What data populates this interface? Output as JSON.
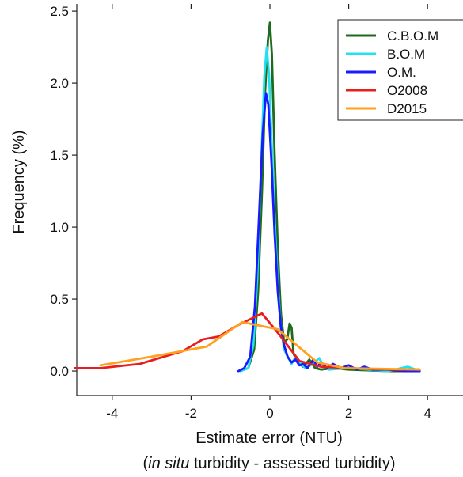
{
  "chart_data": {
    "type": "line",
    "title": "",
    "xlabel": "Estimate error (NTU)",
    "xlabel_note": {
      "open": "(",
      "italic": "in situ",
      "rest": " turbidity - assessed turbidity)"
    },
    "ylabel": "Frequency (%)",
    "xlim": [
      -4.9,
      4.9
    ],
    "ylim": [
      -0.17,
      2.55
    ],
    "xticks": [
      -4,
      -2,
      0,
      2,
      4
    ],
    "xtick_labels": [
      "-4",
      "-2",
      "0",
      "2",
      "4"
    ],
    "yticks": [
      0.0,
      0.5,
      1.0,
      1.5,
      2.0,
      2.5
    ],
    "ytick_labels": [
      "0.0",
      "0.5",
      "1.0",
      "1.5",
      "2.0",
      "2.5"
    ],
    "grid": false,
    "legend_position": "top-right",
    "series": [
      {
        "name": "C.B.O.M",
        "color": "#1e6b1e",
        "points": [
          [
            -0.75,
            0.0
          ],
          [
            -0.55,
            0.02
          ],
          [
            -0.4,
            0.15
          ],
          [
            -0.3,
            0.55
          ],
          [
            -0.2,
            1.25
          ],
          [
            -0.12,
            1.95
          ],
          [
            -0.05,
            2.3
          ],
          [
            0.0,
            2.42
          ],
          [
            0.05,
            2.2
          ],
          [
            0.12,
            1.5
          ],
          [
            0.2,
            0.85
          ],
          [
            0.28,
            0.4
          ],
          [
            0.36,
            0.2
          ],
          [
            0.44,
            0.22
          ],
          [
            0.5,
            0.33
          ],
          [
            0.55,
            0.3
          ],
          [
            0.6,
            0.12
          ],
          [
            0.7,
            0.06
          ],
          [
            0.85,
            0.03
          ],
          [
            1.0,
            0.08
          ],
          [
            1.15,
            0.02
          ],
          [
            1.3,
            0.01
          ],
          [
            1.6,
            0.02
          ],
          [
            2.0,
            0.01
          ],
          [
            3.0,
            0.0
          ],
          [
            3.8,
            0.0
          ]
        ]
      },
      {
        "name": "B.O.M",
        "color": "#22e0f0",
        "points": [
          [
            -0.75,
            0.0
          ],
          [
            -0.55,
            0.02
          ],
          [
            -0.42,
            0.18
          ],
          [
            -0.32,
            0.65
          ],
          [
            -0.22,
            1.45
          ],
          [
            -0.14,
            2.05
          ],
          [
            -0.08,
            2.25
          ],
          [
            -0.02,
            2.05
          ],
          [
            0.05,
            1.55
          ],
          [
            0.12,
            1.05
          ],
          [
            0.2,
            0.6
          ],
          [
            0.28,
            0.3
          ],
          [
            0.36,
            0.15
          ],
          [
            0.45,
            0.1
          ],
          [
            0.55,
            0.05
          ],
          [
            0.65,
            0.1
          ],
          [
            0.75,
            0.06
          ],
          [
            0.9,
            0.02
          ],
          [
            1.1,
            0.05
          ],
          [
            1.25,
            0.09
          ],
          [
            1.35,
            0.04
          ],
          [
            1.5,
            0.01
          ],
          [
            2.0,
            0.02
          ],
          [
            3.0,
            0.0
          ],
          [
            3.5,
            0.03
          ],
          [
            3.8,
            0.0
          ]
        ]
      },
      {
        "name": "O.M.",
        "color": "#1a1aff",
        "points": [
          [
            -0.8,
            0.0
          ],
          [
            -0.65,
            0.02
          ],
          [
            -0.5,
            0.1
          ],
          [
            -0.38,
            0.45
          ],
          [
            -0.28,
            1.05
          ],
          [
            -0.18,
            1.65
          ],
          [
            -0.1,
            1.93
          ],
          [
            -0.04,
            1.85
          ],
          [
            0.04,
            1.45
          ],
          [
            0.12,
            0.95
          ],
          [
            0.2,
            0.55
          ],
          [
            0.28,
            0.3
          ],
          [
            0.36,
            0.18
          ],
          [
            0.45,
            0.1
          ],
          [
            0.55,
            0.06
          ],
          [
            0.65,
            0.08
          ],
          [
            0.75,
            0.04
          ],
          [
            0.85,
            0.05
          ],
          [
            0.95,
            0.02
          ],
          [
            1.1,
            0.08
          ],
          [
            1.2,
            0.03
          ],
          [
            1.3,
            0.06
          ],
          [
            1.45,
            0.02
          ],
          [
            1.6,
            0.05
          ],
          [
            1.8,
            0.02
          ],
          [
            2.0,
            0.04
          ],
          [
            2.2,
            0.01
          ],
          [
            2.4,
            0.03
          ],
          [
            2.6,
            0.01
          ],
          [
            3.0,
            0.01
          ],
          [
            3.4,
            0.0
          ],
          [
            3.8,
            0.0
          ]
        ]
      },
      {
        "name": "O2008",
        "color": "#e81e1e",
        "points": [
          [
            -4.95,
            0.02
          ],
          [
            -4.3,
            0.02
          ],
          [
            -3.3,
            0.05
          ],
          [
            -2.2,
            0.14
          ],
          [
            -1.7,
            0.22
          ],
          [
            -1.3,
            0.24
          ],
          [
            -0.8,
            0.32
          ],
          [
            -0.2,
            0.4
          ],
          [
            0.25,
            0.25
          ],
          [
            0.75,
            0.07
          ],
          [
            1.3,
            0.03
          ],
          [
            2.0,
            0.02
          ],
          [
            3.0,
            0.01
          ],
          [
            3.8,
            0.01
          ]
        ]
      },
      {
        "name": "D2015",
        "color": "#ffa01e",
        "points": [
          [
            -4.3,
            0.04
          ],
          [
            -3.0,
            0.1
          ],
          [
            -1.6,
            0.17
          ],
          [
            -0.7,
            0.34
          ],
          [
            0.2,
            0.29
          ],
          [
            1.2,
            0.06
          ],
          [
            1.9,
            0.02
          ],
          [
            3.8,
            0.01
          ]
        ]
      }
    ]
  }
}
